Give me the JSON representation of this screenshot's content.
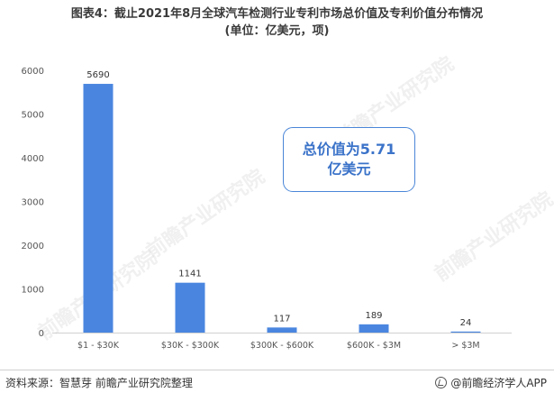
{
  "title": {
    "line1": "图表4：截止2021年8月全球汽车检测行业专利市场总价值及专利价值分布情况",
    "line2": "(单位：亿美元，项)"
  },
  "callout": {
    "line1": "总价值为5.71",
    "line2": "亿美元"
  },
  "footer": {
    "source": "资料来源：智慧芽 前瞻产业研究院整理",
    "brand": "@前瞻经济学人APP"
  },
  "watermark": "前瞻产业研究院",
  "colors": {
    "bar": "#4a86e0",
    "axis_text": "#555555",
    "callout": "#3b73c9"
  },
  "chart_data": {
    "type": "bar",
    "categories": [
      "$1 - $30K",
      "$30K - $300K",
      "$300K - $600K",
      "$600K - $3M",
      "> $3M"
    ],
    "values": [
      5690,
      1141,
      117,
      189,
      24
    ],
    "yticks": [
      0,
      1000,
      2000,
      3000,
      4000,
      5000,
      6000
    ],
    "ylim": [
      0,
      6000
    ],
    "grid": false
  }
}
